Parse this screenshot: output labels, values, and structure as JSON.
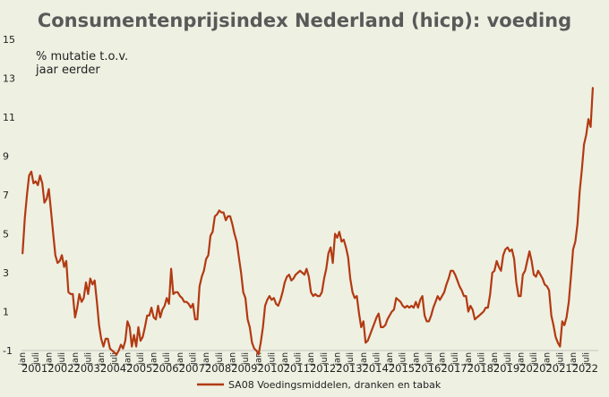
{
  "chart_data": {
    "type": "line",
    "title": "Consumentenprijsindex Nederland (hicp): voeding",
    "annotation": [
      "% mutatie t.o.v.",
      "jaar eerder"
    ],
    "xlabel": "",
    "ylabel": "",
    "ylim": [
      -1,
      15
    ],
    "yticks": [
      15,
      13,
      11,
      9,
      7,
      5,
      3,
      1,
      -1
    ],
    "grid": false,
    "legend_position": "bottom-center",
    "month_labels": [
      "jan",
      "juli"
    ],
    "years": [
      "2001",
      "2002",
      "2003",
      "2004",
      "2005",
      "2006",
      "2007",
      "2008",
      "2009",
      "2010",
      "2011",
      "2012",
      "2013",
      "2014",
      "2015",
      "2016",
      "2017",
      "2018",
      "2019",
      "2020",
      "2021",
      "2022"
    ],
    "color": "#b23a12",
    "series": [
      {
        "name": "SA08 Voedingsmiddelen, dranken en tabak",
        "x_start": "2001-01",
        "frequency": "monthly",
        "values": [
          4.0,
          5.8,
          7.0,
          8.0,
          8.2,
          7.6,
          7.7,
          7.5,
          8.0,
          7.6,
          6.6,
          6.8,
          7.3,
          6.2,
          5.0,
          3.9,
          3.5,
          3.6,
          3.9,
          3.3,
          3.6,
          2.0,
          1.9,
          1.9,
          0.7,
          1.2,
          1.9,
          1.5,
          1.7,
          2.5,
          1.9,
          2.7,
          2.4,
          2.6,
          1.5,
          0.3,
          -0.4,
          -0.8,
          -0.4,
          -0.4,
          -0.9,
          -1.0,
          -1.1,
          -1.2,
          -1.0,
          -0.7,
          -0.9,
          -0.5,
          0.5,
          0.2,
          -0.8,
          -0.2,
          -0.8,
          0.2,
          -0.5,
          -0.3,
          0.2,
          0.8,
          0.8,
          1.2,
          0.7,
          0.6,
          1.3,
          0.7,
          1.1,
          1.3,
          1.7,
          1.4,
          3.2,
          1.9,
          2.0,
          2.0,
          1.8,
          1.7,
          1.5,
          1.5,
          1.4,
          1.2,
          1.4,
          0.6,
          0.6,
          2.3,
          2.8,
          3.1,
          3.7,
          3.9,
          4.9,
          5.1,
          5.9,
          6.0,
          6.2,
          6.1,
          6.1,
          5.7,
          5.9,
          5.9,
          5.5,
          5.0,
          4.6,
          3.8,
          3.0,
          2.0,
          1.7,
          0.6,
          0.2,
          -0.6,
          -0.9,
          -1.0,
          -1.2,
          -0.6,
          0.2,
          1.3,
          1.6,
          1.8,
          1.6,
          1.7,
          1.4,
          1.3,
          1.6,
          2.0,
          2.5,
          2.8,
          2.9,
          2.6,
          2.7,
          2.9,
          3.0,
          3.1,
          3.0,
          2.9,
          3.2,
          2.8,
          2.0,
          1.8,
          1.9,
          1.8,
          1.8,
          2.0,
          2.7,
          3.2,
          4.0,
          4.3,
          3.5,
          5.0,
          4.8,
          5.1,
          4.6,
          4.7,
          4.3,
          3.8,
          2.7,
          2.0,
          1.7,
          1.8,
          0.9,
          0.2,
          0.5,
          -0.6,
          -0.5,
          -0.2,
          0.1,
          0.4,
          0.7,
          0.9,
          0.2,
          0.2,
          0.3,
          0.6,
          0.8,
          1.0,
          1.1,
          1.7,
          1.6,
          1.5,
          1.3,
          1.2,
          1.3,
          1.2,
          1.3,
          1.2,
          1.5,
          1.2,
          1.6,
          1.8,
          0.8,
          0.5,
          0.5,
          0.8,
          1.2,
          1.5,
          1.8,
          1.6,
          1.8,
          2.0,
          2.4,
          2.7,
          3.1,
          3.1,
          2.9,
          2.6,
          2.3,
          2.1,
          1.8,
          1.8,
          1.0,
          1.3,
          1.1,
          0.6,
          0.7,
          0.8,
          0.9,
          1.0,
          1.2,
          1.2,
          1.9,
          3.0,
          3.1,
          3.6,
          3.3,
          3.1,
          3.9,
          4.2,
          4.3,
          4.1,
          4.2,
          3.7,
          2.5,
          1.8,
          1.8,
          2.9,
          3.1,
          3.6,
          4.1,
          3.6,
          2.9,
          2.8,
          3.1,
          2.9,
          2.7,
          2.4,
          2.3,
          2.1,
          0.8,
          0.3,
          -0.3,
          -0.6,
          -0.8,
          0.5,
          0.3,
          0.7,
          1.5,
          2.8,
          4.2,
          4.6,
          5.5,
          7.2,
          8.3,
          9.6,
          10.1,
          10.9,
          10.5,
          12.5
        ]
      }
    ]
  }
}
